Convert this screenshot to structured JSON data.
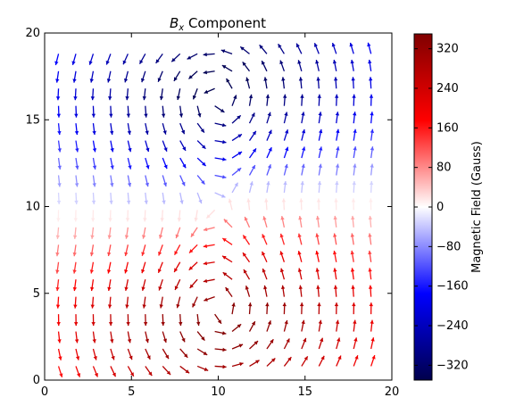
{
  "chart_data": [
    {
      "type": "quiver",
      "title_symbol": "B",
      "title_subscript": "x",
      "title_rest": " Component",
      "xlabel": "",
      "ylabel": "",
      "xlim": [
        0,
        20
      ],
      "ylim": [
        0,
        20
      ],
      "xticks": [
        "0",
        "5",
        "10",
        "15",
        "20"
      ],
      "yticks": [
        "0",
        "5",
        "10",
        "15",
        "20"
      ],
      "grid": false,
      "arrow_grid": {
        "x": [
          0.8,
          1.8,
          2.8,
          3.8,
          4.8,
          5.8,
          6.8,
          7.8,
          8.8,
          9.8,
          10.8,
          11.8,
          12.8,
          13.8,
          14.8,
          15.8,
          16.8,
          17.8,
          18.8
        ],
        "y": [
          0.8,
          1.8,
          2.8,
          3.8,
          4.8,
          5.8,
          6.8,
          7.8,
          8.8,
          9.8,
          10.8,
          11.8,
          12.8,
          13.8,
          14.8,
          15.8,
          16.8,
          17.8,
          18.8
        ]
      },
      "lower_vortex": {
        "center": [
          10,
          3.2
        ],
        "bx_max": 350,
        "sign": 1
      },
      "upper_vortex": {
        "center": [
          10,
          17
        ],
        "bx_max": 350,
        "sign": -1
      },
      "colormap": "seismic",
      "colors": {
        "neg_end": "#00004c",
        "neg_mid": "#0000ff",
        "zero": "#ffffff",
        "pos_mid": "#ff0000",
        "pos_end": "#800000"
      }
    },
    {
      "type": "colorbar",
      "label": "Magnetic Field (Gauss)",
      "range": [
        -350,
        350
      ],
      "ticks": [
        "320",
        "240",
        "160",
        "80",
        "0",
        "−80",
        "−160",
        "−240",
        "−320"
      ]
    }
  ]
}
